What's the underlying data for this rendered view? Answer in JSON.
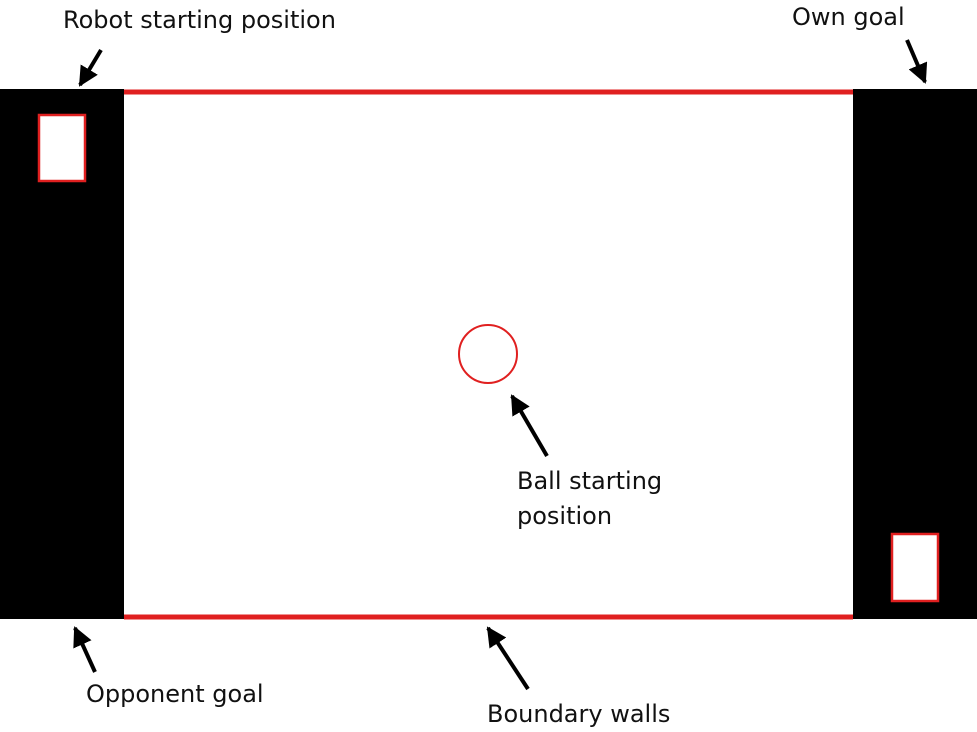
{
  "labels": {
    "robot_start": "Robot starting position",
    "own_goal": "Own goal",
    "ball_start_line1": "Ball starting",
    "ball_start_line2": "position",
    "opponent_goal": "Opponent goal",
    "boundary_walls": "Boundary walls"
  },
  "colors": {
    "goal_zone": "#000000",
    "wall": "#e02020",
    "marker_outline": "#e02020",
    "field": "#ffffff",
    "arrow": "#000000",
    "text": "#111111"
  }
}
